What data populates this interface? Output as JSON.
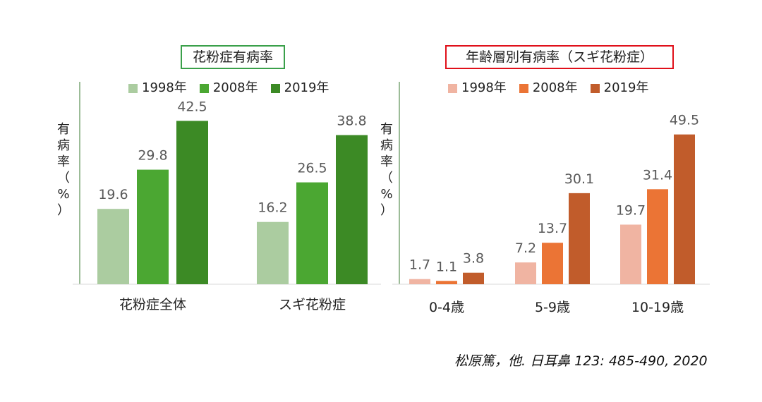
{
  "chart_data": [
    {
      "type": "bar",
      "title": "花粉症有病率",
      "ylabel": "有\n病\n率\n（\n%\n）",
      "xlabel": "",
      "categories": [
        "花粉症全体",
        "スギ花粉症"
      ],
      "series": [
        {
          "name": "1998年",
          "values": [
            19.6,
            16.2
          ],
          "color": "#abcca0"
        },
        {
          "name": "2008年",
          "values": [
            29.8,
            26.5
          ],
          "color": "#4ba732"
        },
        {
          "name": "2019年",
          "values": [
            42.5,
            38.8
          ],
          "color": "#3c8a25"
        }
      ],
      "ylim": [
        0,
        55
      ],
      "grid": false,
      "legend": "top",
      "title_border_color": "#3aa04a"
    },
    {
      "type": "bar",
      "title": "年齢層別有病率（スギ花粉症）",
      "ylabel": "有\n病\n率\n（\n%\n）",
      "xlabel": "",
      "categories": [
        "0-4歳",
        "5-9歳",
        "10-19歳"
      ],
      "series": [
        {
          "name": "1998年",
          "values": [
            1.7,
            7.2,
            19.7
          ],
          "color": "#f0b4a2"
        },
        {
          "name": "2008年",
          "values": [
            1.1,
            13.7,
            31.4
          ],
          "color": "#eb7435"
        },
        {
          "name": "2019年",
          "values": [
            3.8,
            30.1,
            49.5
          ],
          "color": "#c15c2b"
        }
      ],
      "ylim": [
        0,
        55
      ],
      "grid": false,
      "legend": "top",
      "title_border_color": "#e0101a"
    }
  ],
  "citation": "松原篤，他.  日耳鼻  123: 485-490, 2020"
}
